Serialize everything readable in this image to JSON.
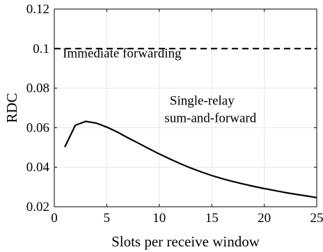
{
  "chart_data": {
    "type": "line",
    "title": "",
    "xlabel": "Slots per receive window",
    "ylabel": "RDC",
    "xlim": [
      0,
      25
    ],
    "ylim": [
      0.02,
      0.12
    ],
    "xticks": [
      0,
      5,
      10,
      15,
      20,
      25
    ],
    "yticks": [
      0.02,
      0.04,
      0.06,
      0.08,
      0.1,
      0.12
    ],
    "xtick_labels": [
      "0",
      "5",
      "10",
      "15",
      "20",
      "25"
    ],
    "ytick_labels": [
      "0.02",
      "0.04",
      "0.06",
      "0.08",
      "0.1",
      "0.12"
    ],
    "grid": true,
    "series": [
      {
        "style": "dashed",
        "color": "#000000",
        "x": [
          0,
          25
        ],
        "y": [
          0.1,
          0.1
        ]
      },
      {
        "style": "solid",
        "color": "#000000",
        "x": [
          1,
          2,
          3,
          4,
          5,
          6,
          7,
          8,
          9,
          10,
          11,
          12,
          13,
          14,
          15,
          16,
          17,
          18,
          19,
          20,
          21,
          22,
          23,
          24,
          25
        ],
        "y": [
          0.0502,
          0.0612,
          0.0632,
          0.0623,
          0.0603,
          0.0578,
          0.0549,
          0.0522,
          0.0494,
          0.0467,
          0.0442,
          0.0418,
          0.0396,
          0.0376,
          0.0358,
          0.0342,
          0.0328,
          0.0315,
          0.0303,
          0.0292,
          0.0282,
          0.0272,
          0.0263,
          0.0255,
          0.0246
        ]
      }
    ],
    "annotations": [
      {
        "text": "Immediate forwarding",
        "x": 0.8,
        "y": 0.0955
      },
      {
        "text": "Single-relay",
        "x": 11,
        "y": 0.0715
      },
      {
        "text": "sum-and-forward",
        "x": 10.5,
        "y": 0.0627
      }
    ]
  }
}
